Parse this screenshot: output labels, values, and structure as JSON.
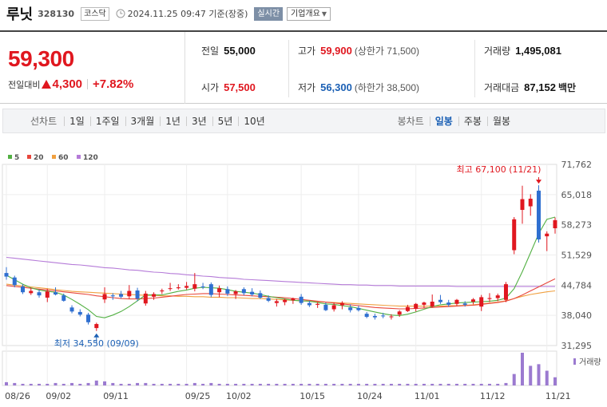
{
  "header": {
    "name": "루닛",
    "code": "328130",
    "market": "코스닥",
    "timestamp": "2024.11.25 09:47 기준(장중)",
    "realtime_label": "실시간",
    "overview_label": "기업개요"
  },
  "quote": {
    "price": "59,300",
    "change_label": "전일대비",
    "change_amount": "4,300",
    "change_pct": "+7.82%",
    "prev_close_label": "전일",
    "prev_close": "55,000",
    "open_label": "시가",
    "open": "57,500",
    "high_label": "고가",
    "high": "59,900",
    "upper_limit": "(상한가 71,500)",
    "low_label": "저가",
    "low": "56,300",
    "lower_limit": "(하한가 38,500)",
    "volume_label": "거래량",
    "volume": "1,495,081",
    "value_label": "거래대금",
    "value": "87,152",
    "value_unit": "백만"
  },
  "period_bar": {
    "line_label": "선차트",
    "line_periods": [
      "1일",
      "1주일",
      "3개월",
      "1년",
      "3년",
      "5년",
      "10년"
    ],
    "candle_label": "봉차트",
    "candle_periods": [
      "일봉",
      "주봉",
      "월봉"
    ],
    "candle_active": "일봉"
  },
  "chart_data": {
    "type": "candlestick",
    "y_ticks": [
      "71,762",
      "65,018",
      "58,273",
      "51,529",
      "44,784",
      "38,040",
      "31,295"
    ],
    "ylim": [
      31295,
      71762
    ],
    "x_ticks": [
      "08/26",
      "09/02",
      "09/11",
      "09/25",
      "10/02",
      "10/15",
      "10/24",
      "11/01",
      "11/12",
      "11/21"
    ],
    "legend": [
      {
        "name": "5",
        "color": "#52b043"
      },
      {
        "name": "20",
        "color": "#e8473c"
      },
      {
        "name": "60",
        "color": "#f0a040"
      },
      {
        "name": "120",
        "color": "#b57bd8"
      }
    ],
    "annotations": {
      "high_label": "최고 67,100 (11/21)",
      "low_label": "최저 34,550 (09/09)"
    },
    "volume_label": "거래량",
    "colors": {
      "up": "#e0171f",
      "down": "#2f6fd0",
      "volume": "#9b7ad0"
    },
    "candles": [
      {
        "o": 47500,
        "h": 48800,
        "l": 46000,
        "c": 46700
      },
      {
        "o": 46500,
        "h": 46900,
        "l": 44300,
        "c": 44800
      },
      {
        "o": 44500,
        "h": 45000,
        "l": 42800,
        "c": 43200
      },
      {
        "o": 43000,
        "h": 44200,
        "l": 42600,
        "c": 43500
      },
      {
        "o": 43200,
        "h": 43800,
        "l": 42000,
        "c": 42500
      },
      {
        "o": 42000,
        "h": 44000,
        "l": 41000,
        "c": 43400
      },
      {
        "o": 43200,
        "h": 44300,
        "l": 42500,
        "c": 42700
      },
      {
        "o": 42500,
        "h": 42900,
        "l": 41100,
        "c": 41300
      },
      {
        "o": 39800,
        "h": 40300,
        "l": 38500,
        "c": 38900
      },
      {
        "o": 38800,
        "h": 39400,
        "l": 37800,
        "c": 38200
      },
      {
        "o": 38200,
        "h": 38600,
        "l": 36000,
        "c": 36500
      },
      {
        "o": 35200,
        "h": 36400,
        "l": 34550,
        "c": 36100
      },
      {
        "o": 41600,
        "h": 44300,
        "l": 40800,
        "c": 42800
      },
      {
        "o": 42500,
        "h": 43000,
        "l": 41500,
        "c": 42300
      },
      {
        "o": 42800,
        "h": 43500,
        "l": 41800,
        "c": 42200
      },
      {
        "o": 42300,
        "h": 44800,
        "l": 41700,
        "c": 43500
      },
      {
        "o": 43600,
        "h": 44200,
        "l": 41200,
        "c": 41800
      },
      {
        "o": 40700,
        "h": 43500,
        "l": 40200,
        "c": 42900
      },
      {
        "o": 42200,
        "h": 43200,
        "l": 41500,
        "c": 42800
      },
      {
        "o": 43400,
        "h": 44000,
        "l": 42800,
        "c": 43600
      },
      {
        "o": 44000,
        "h": 45300,
        "l": 43500,
        "c": 44100
      },
      {
        "o": 44100,
        "h": 45000,
        "l": 43800,
        "c": 44300
      },
      {
        "o": 44200,
        "h": 45500,
        "l": 43800,
        "c": 44600
      },
      {
        "o": 44000,
        "h": 47500,
        "l": 43400,
        "c": 45000
      },
      {
        "o": 44500,
        "h": 45300,
        "l": 43900,
        "c": 44300
      },
      {
        "o": 45000,
        "h": 45400,
        "l": 42100,
        "c": 42600
      },
      {
        "o": 43200,
        "h": 44700,
        "l": 42100,
        "c": 44100
      },
      {
        "o": 43900,
        "h": 44500,
        "l": 42400,
        "c": 42900
      },
      {
        "o": 42800,
        "h": 43700,
        "l": 41700,
        "c": 43400
      },
      {
        "o": 43900,
        "h": 44300,
        "l": 42500,
        "c": 43000
      },
      {
        "o": 43300,
        "h": 44100,
        "l": 42300,
        "c": 42700
      },
      {
        "o": 43000,
        "h": 43600,
        "l": 41700,
        "c": 42000
      },
      {
        "o": 41900,
        "h": 42500,
        "l": 41000,
        "c": 41300
      },
      {
        "o": 40800,
        "h": 41700,
        "l": 40000,
        "c": 41200
      },
      {
        "o": 41000,
        "h": 41800,
        "l": 40300,
        "c": 41500
      },
      {
        "o": 41400,
        "h": 42000,
        "l": 40600,
        "c": 41800
      },
      {
        "o": 42200,
        "h": 42800,
        "l": 40400,
        "c": 40800
      },
      {
        "o": 40800,
        "h": 41300,
        "l": 39900,
        "c": 40300
      },
      {
        "o": 40400,
        "h": 41000,
        "l": 39700,
        "c": 40600
      },
      {
        "o": 40400,
        "h": 40900,
        "l": 39000,
        "c": 39200
      },
      {
        "o": 39400,
        "h": 40900,
        "l": 38900,
        "c": 40300
      },
      {
        "o": 40300,
        "h": 41200,
        "l": 39400,
        "c": 40800
      },
      {
        "o": 39800,
        "h": 40500,
        "l": 38700,
        "c": 39200
      },
      {
        "o": 39700,
        "h": 40200,
        "l": 38900,
        "c": 39200
      },
      {
        "o": 38400,
        "h": 38800,
        "l": 37400,
        "c": 37700
      },
      {
        "o": 37900,
        "h": 38400,
        "l": 37100,
        "c": 37600
      },
      {
        "o": 38000,
        "h": 38600,
        "l": 37400,
        "c": 37900
      },
      {
        "o": 37700,
        "h": 38300,
        "l": 37100,
        "c": 37800
      },
      {
        "o": 38200,
        "h": 39200,
        "l": 37700,
        "c": 38900
      },
      {
        "o": 39000,
        "h": 40400,
        "l": 38800,
        "c": 39900
      },
      {
        "o": 39500,
        "h": 40800,
        "l": 38900,
        "c": 40600
      },
      {
        "o": 40400,
        "h": 41100,
        "l": 39700,
        "c": 40900
      },
      {
        "o": 40000,
        "h": 42700,
        "l": 39800,
        "c": 41100
      },
      {
        "o": 41500,
        "h": 42600,
        "l": 40600,
        "c": 41000
      },
      {
        "o": 40900,
        "h": 41500,
        "l": 40000,
        "c": 40400
      },
      {
        "o": 40600,
        "h": 41700,
        "l": 40200,
        "c": 41500
      },
      {
        "o": 40700,
        "h": 41200,
        "l": 40000,
        "c": 40400
      },
      {
        "o": 41100,
        "h": 41900,
        "l": 40500,
        "c": 41600
      },
      {
        "o": 40000,
        "h": 42600,
        "l": 39000,
        "c": 42100
      },
      {
        "o": 41700,
        "h": 43000,
        "l": 41000,
        "c": 41900
      },
      {
        "o": 41900,
        "h": 42900,
        "l": 41200,
        "c": 42500
      },
      {
        "o": 41500,
        "h": 45500,
        "l": 41000,
        "c": 45000
      },
      {
        "o": 52600,
        "h": 60000,
        "l": 51700,
        "c": 59500
      },
      {
        "o": 61600,
        "h": 67000,
        "l": 58500,
        "c": 64000
      },
      {
        "o": 62400,
        "h": 65100,
        "l": 60300,
        "c": 64100
      },
      {
        "o": 65900,
        "h": 67100,
        "l": 54300,
        "c": 55000
      },
      {
        "o": 55700,
        "h": 56800,
        "l": 52400,
        "c": 56300
      },
      {
        "o": 57500,
        "h": 59900,
        "l": 56300,
        "c": 59300
      }
    ],
    "ma5": [
      47000,
      46000,
      45000,
      44200,
      43700,
      43400,
      43200,
      42600,
      41600,
      40500,
      39300,
      37800,
      37500,
      38100,
      38900,
      40000,
      41300,
      42600,
      42600,
      42600,
      43000,
      43400,
      43700,
      44100,
      44300,
      44200,
      44100,
      43800,
      43400,
      43200,
      43000,
      42700,
      42300,
      42000,
      41700,
      41400,
      41300,
      41200,
      40900,
      40600,
      40500,
      40200,
      40000,
      39600,
      39200,
      38800,
      38400,
      38100,
      38000,
      38300,
      38800,
      39400,
      40000,
      40400,
      40600,
      40800,
      40900,
      41000,
      41100,
      41200,
      41400,
      41900,
      44000,
      47800,
      52000,
      56300,
      59500,
      60000
    ],
    "ma20": [
      44700,
      44500,
      44300,
      44100,
      43900,
      43700,
      43500,
      43300,
      43100,
      42900,
      42700,
      42400,
      42200,
      42000,
      41800,
      41700,
      41700,
      41800,
      41900,
      42100,
      42300,
      42500,
      42700,
      42800,
      42900,
      42900,
      42800,
      42700,
      42600,
      42500,
      42400,
      42300,
      42200,
      42100,
      42000,
      41800,
      41600,
      41400,
      41200,
      41000,
      40800,
      40600,
      40400,
      40200,
      40000,
      39800,
      39700,
      39600,
      39500,
      39500,
      39600,
      39700,
      39800,
      39900,
      40000,
      40100,
      40200,
      40300,
      40500,
      40700,
      40900,
      41200,
      41800,
      42600,
      43500,
      44400,
      45300,
      46200
    ],
    "ma60": [
      45000,
      44800,
      44600,
      44400,
      44200,
      44000,
      43800,
      43600,
      43400,
      43300,
      43200,
      43100,
      43000,
      42900,
      42800,
      42700,
      42600,
      42500,
      42500,
      42400,
      42400,
      42300,
      42300,
      42200,
      42200,
      42100,
      42100,
      42000,
      42000,
      41900,
      41800,
      41800,
      41700,
      41600,
      41500,
      41400,
      41300,
      41200,
      41100,
      41000,
      40900,
      40800,
      40700,
      40600,
      40500,
      40400,
      40300,
      40200,
      40100,
      40100,
      40100,
      40100,
      40100,
      40100,
      40200,
      40200,
      40300,
      40400,
      40600,
      40800,
      41000,
      41300,
      41800,
      42300,
      42700,
      43000,
      43300,
      43500
    ],
    "ma120": [
      51000,
      50800,
      50600,
      50400,
      50200,
      50000,
      49800,
      49600,
      49400,
      49300,
      49100,
      48900,
      48700,
      48600,
      48400,
      48200,
      48100,
      47900,
      47700,
      47600,
      47400,
      47300,
      47100,
      47000,
      46800,
      46700,
      46500,
      46400,
      46300,
      46100,
      46000,
      45900,
      45800,
      45700,
      45600,
      45500,
      45400,
      45300,
      45200,
      45100,
      45000,
      44900,
      44900,
      44800,
      44800,
      44700,
      44700,
      44700,
      44600,
      44600,
      44600,
      44600,
      44600,
      44600,
      44600,
      44500,
      44500,
      44500,
      44500,
      44500,
      44500,
      44500,
      44500,
      44500,
      44500,
      44500,
      44500,
      44500
    ],
    "volume": [
      4,
      3,
      2,
      2,
      2,
      2,
      3,
      2,
      3,
      2,
      3,
      6,
      5,
      3,
      2,
      2,
      3,
      3,
      2,
      2,
      2,
      2,
      2,
      3,
      2,
      3,
      2,
      2,
      2,
      2,
      2,
      2,
      2,
      2,
      2,
      2,
      2,
      2,
      2,
      2,
      2,
      2,
      2,
      2,
      2,
      2,
      2,
      2,
      2,
      2,
      2,
      2,
      2,
      2,
      2,
      2,
      2,
      2,
      2,
      2,
      2,
      3,
      14,
      40,
      24,
      26,
      18,
      10
    ]
  }
}
